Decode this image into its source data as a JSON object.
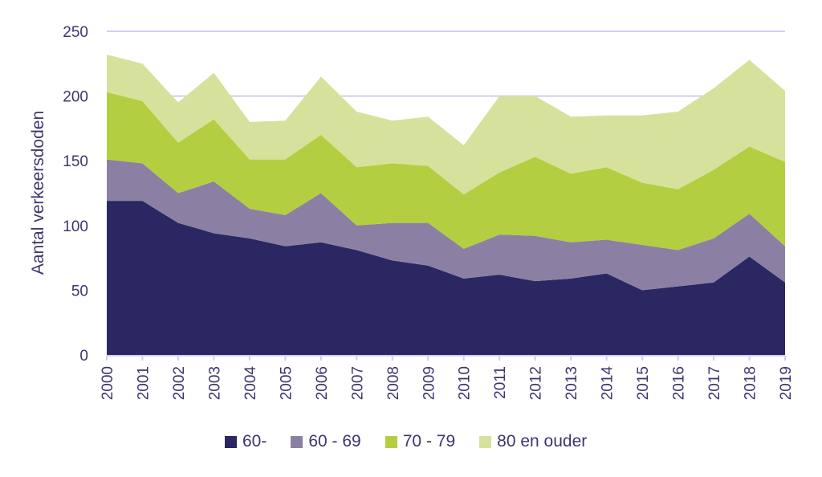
{
  "chart_data": {
    "type": "area",
    "stacked": true,
    "title": "",
    "xlabel": "",
    "ylabel": "Aantal verkeersdoden",
    "ylim": [
      0,
      250
    ],
    "yticks": [
      0,
      50,
      100,
      150,
      200,
      250
    ],
    "grid": true,
    "legend_position": "bottom",
    "categories": [
      "2000",
      "2001",
      "2002",
      "2003",
      "2004",
      "2005",
      "2006",
      "2007",
      "2008",
      "2009",
      "2010",
      "2011",
      "2012",
      "2013",
      "2014",
      "2015",
      "2016",
      "2017",
      "2018",
      "2019"
    ],
    "series": [
      {
        "name": "60-",
        "color": "#2b2762",
        "values": [
          119,
          119,
          102,
          94,
          90,
          84,
          87,
          81,
          73,
          69,
          59,
          62,
          57,
          59,
          63,
          50,
          53,
          56,
          76,
          56
        ]
      },
      {
        "name": "60 - 69",
        "color": "#8b80a3",
        "values": [
          32,
          29,
          23,
          40,
          23,
          24,
          38,
          19,
          29,
          33,
          23,
          31,
          35,
          28,
          26,
          35,
          28,
          34,
          33,
          28
        ]
      },
      {
        "name": "70 - 79",
        "color": "#b3ce40",
        "values": [
          52,
          48,
          39,
          48,
          38,
          43,
          45,
          45,
          46,
          44,
          42,
          48,
          61,
          53,
          56,
          48,
          47,
          53,
          52,
          65
        ]
      },
      {
        "name": "80 en ouder",
        "color": "#d6e19c",
        "values": [
          29,
          29,
          31,
          36,
          29,
          30,
          45,
          43,
          33,
          38,
          38,
          59,
          47,
          44,
          40,
          52,
          60,
          63,
          67,
          55
        ]
      }
    ]
  }
}
